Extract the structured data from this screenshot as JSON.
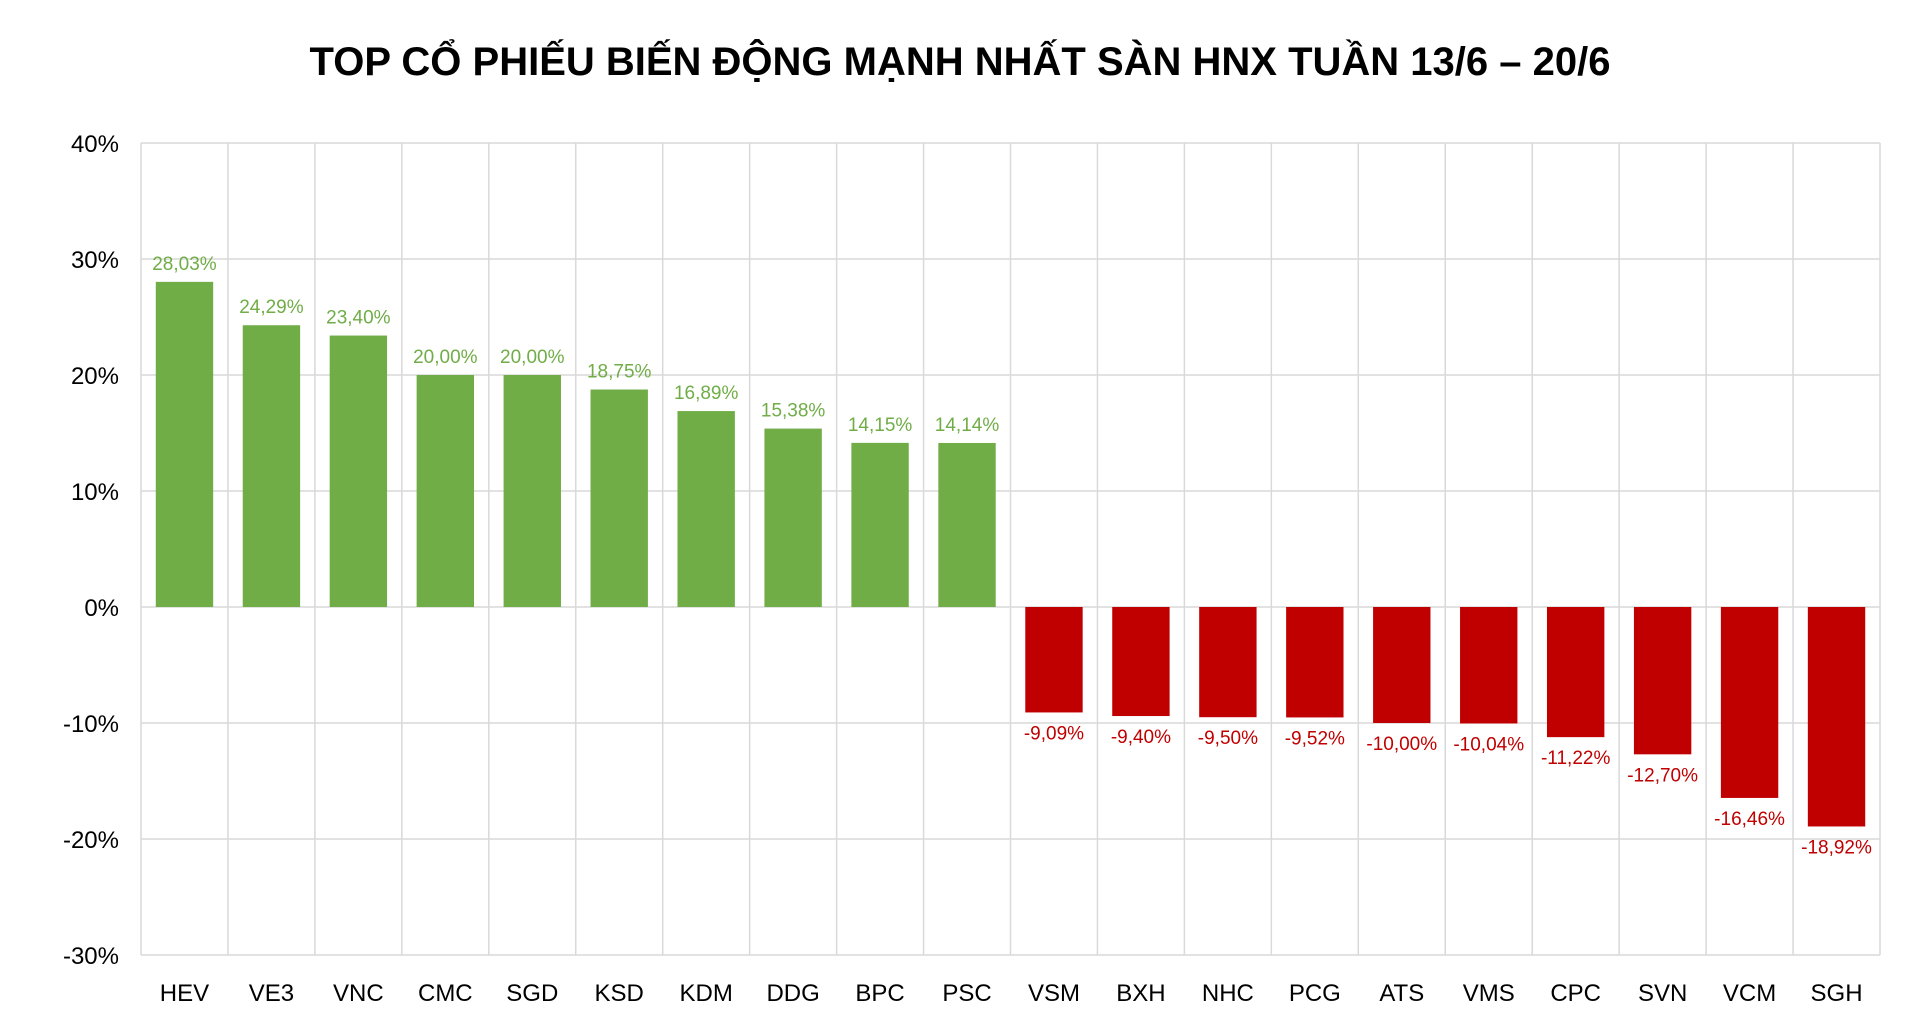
{
  "chart_data": {
    "type": "bar",
    "title": "TOP CỔ PHIẾU BIẾN ĐỘNG MẠNH NHẤT SÀN HNX TUẦN 13/6 – 20/6",
    "xlabel": "",
    "ylabel": "",
    "ylim": [
      -30,
      40
    ],
    "yticks": [
      40,
      30,
      20,
      10,
      0,
      -10,
      -20,
      -30
    ],
    "ytick_labels": [
      "40%",
      "30%",
      "20%",
      "10%",
      "0%",
      "-10%",
      "-20%",
      "-30%"
    ],
    "grid": true,
    "legend": "none",
    "categories": [
      "HEV",
      "VE3",
      "VNC",
      "CMC",
      "SGD",
      "KSD",
      "KDM",
      "DDG",
      "BPC",
      "PSC",
      "VSM",
      "BXH",
      "NHC",
      "PCG",
      "ATS",
      "VMS",
      "CPC",
      "SVN",
      "VCM",
      "SGH"
    ],
    "values": [
      28.03,
      24.29,
      23.4,
      20.0,
      20.0,
      18.75,
      16.89,
      15.38,
      14.15,
      14.14,
      -9.09,
      -9.4,
      -9.5,
      -9.52,
      -10.0,
      -10.04,
      -11.22,
      -12.7,
      -16.46,
      -18.92
    ],
    "data_labels": [
      "28,03%",
      "24,29%",
      "23,40%",
      "20,00%",
      "20,00%",
      "18,75%",
      "16,89%",
      "15,38%",
      "14,15%",
      "14,14%",
      "-9,09%",
      "-9,40%",
      "-9,50%",
      "-9,52%",
      "-10,00%",
      "-10,04%",
      "-11,22%",
      "-12,70%",
      "-16,46%",
      "-18,92%"
    ],
    "colors": {
      "positive_bar": "#70ad47",
      "negative_bar": "#c00000",
      "positive_label": "#70ad47",
      "negative_label": "#c00000",
      "grid": "#d9d9d9",
      "text": "#000000"
    }
  }
}
